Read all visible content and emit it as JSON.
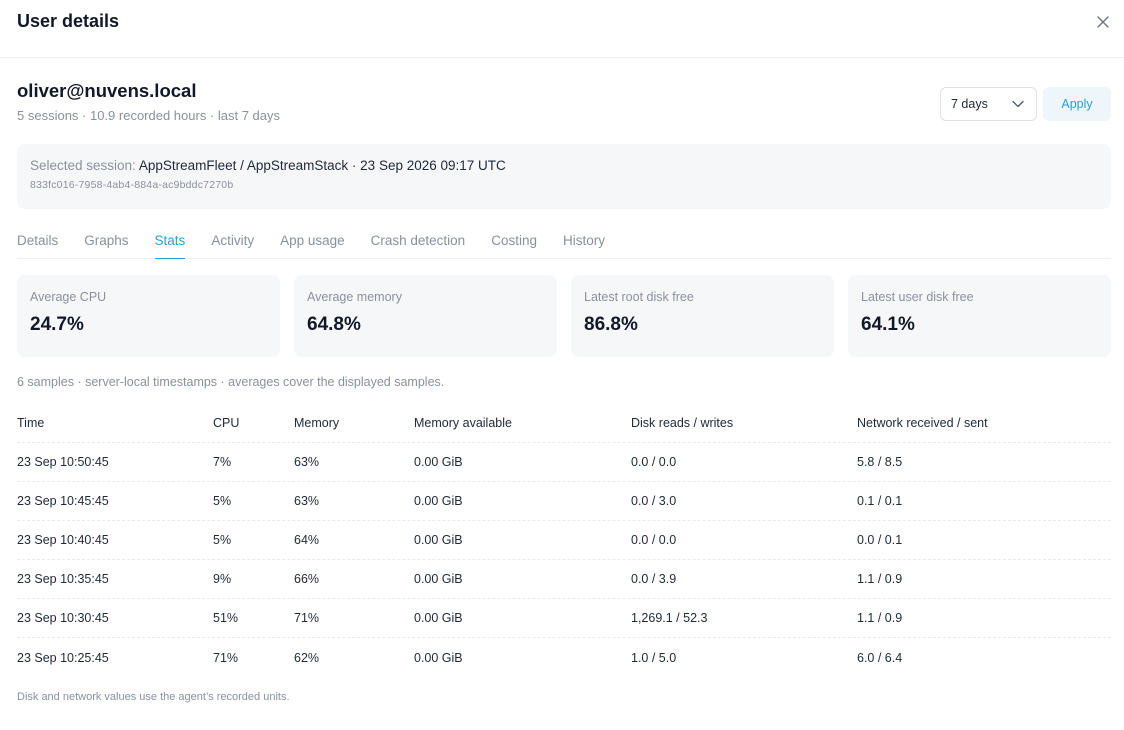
{
  "header": {
    "title": "User details",
    "close_icon": "close-icon"
  },
  "user": {
    "email": "oliver@nuvens.local",
    "meta": "5 sessions · 10.9 recorded hours · last 7 days"
  },
  "controls": {
    "range_value": "7 days",
    "apply_label": "Apply"
  },
  "session": {
    "label": "Selected session:",
    "value": "AppStreamFleet / AppStreamStack · 23 Sep 2026 09:17 UTC",
    "id": "833fc016-7958-4ab4-884a-ac9bddc7270b"
  },
  "tabs": [
    "Details",
    "Graphs",
    "Stats",
    "Activity",
    "App usage",
    "Crash detection",
    "Costing",
    "History"
  ],
  "active_tab": "Stats",
  "cards": [
    {
      "label": "Average CPU",
      "value": "24.7%"
    },
    {
      "label": "Average memory",
      "value": "64.8%"
    },
    {
      "label": "Latest root disk free",
      "value": "86.8%"
    },
    {
      "label": "Latest user disk free",
      "value": "64.1%"
    }
  ],
  "samples_note": "6 samples · server-local timestamps · averages cover the displayed samples.",
  "table": {
    "columns": [
      "Time",
      "CPU",
      "Memory",
      "Memory available",
      "Disk reads / writes",
      "Network received / sent"
    ],
    "rows": [
      [
        "23 Sep 10:50:45",
        "7%",
        "63%",
        "0.00 GiB",
        "0.0 / 0.0",
        "5.8 / 8.5"
      ],
      [
        "23 Sep 10:45:45",
        "5%",
        "63%",
        "0.00 GiB",
        "0.0 / 3.0",
        "0.1 / 0.1"
      ],
      [
        "23 Sep 10:40:45",
        "5%",
        "64%",
        "0.00 GiB",
        "0.0 / 0.0",
        "0.0 / 0.1"
      ],
      [
        "23 Sep 10:35:45",
        "9%",
        "66%",
        "0.00 GiB",
        "0.0 / 3.9",
        "1.1 / 0.9"
      ],
      [
        "23 Sep 10:30:45",
        "51%",
        "71%",
        "0.00 GiB",
        "1,269.1 / 52.3",
        "1.1 / 0.9"
      ],
      [
        "23 Sep 10:25:45",
        "71%",
        "62%",
        "0.00 GiB",
        "1.0 / 5.0",
        "6.0 / 6.4"
      ]
    ]
  },
  "footnote": "Disk and network values use the agent’s recorded units.",
  "colors": {
    "accent": "#2a9fd8",
    "muted": "#8a919c",
    "panel": "#f6f7f9"
  }
}
